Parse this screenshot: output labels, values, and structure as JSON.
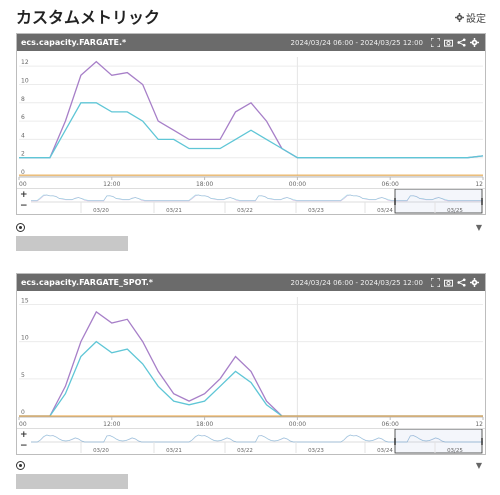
{
  "page": {
    "title": "カスタムメトリック",
    "settings_label": "設定"
  },
  "panels": [
    {
      "title": "ecs.capacity.FARGATE.*",
      "range": "2024/03/24 06:00 - 2024/03/25 12:00",
      "x_ticks": [
        "00",
        "12:00",
        "18:00",
        "00:00",
        "06:00",
        "12"
      ],
      "y_ticks": [
        "0",
        "2",
        "4",
        "6",
        "8",
        "10",
        "12"
      ],
      "nav_ticks": [
        "03/20",
        "03/21",
        "03/22",
        "03/23",
        "03/24",
        "03/25"
      ],
      "zoom_in": "+",
      "zoom_out": "−"
    },
    {
      "title": "ecs.capacity.FARGATE_SPOT.*",
      "range": "2024/03/24 06:00 - 2024/03/25 12:00",
      "x_ticks": [
        "00",
        "12:00",
        "18:00",
        "00:00",
        "06:00",
        "12"
      ],
      "y_ticks": [
        "0",
        "5",
        "10",
        "15"
      ],
      "nav_ticks": [
        "03/20",
        "03/21",
        "03/22",
        "03/23",
        "03/24",
        "03/25"
      ],
      "zoom_in": "+",
      "zoom_out": "−"
    }
  ],
  "icons": [
    "gear-icon",
    "fullscreen-icon",
    "camera-icon",
    "share-icon",
    "settings-gear-icon",
    "radio-icon",
    "caret-down-icon"
  ],
  "colors": {
    "purple": "#a77fc8",
    "cyan": "#5fc6d6",
    "orange": "#e9a23b",
    "header": "#6b6b6b"
  },
  "chart_data": [
    {
      "type": "line",
      "x": [
        "06:00",
        "07:00",
        "08:00",
        "09:00",
        "10:00",
        "11:00",
        "12:00",
        "13:00",
        "14:00",
        "15:00",
        "16:00",
        "17:00",
        "18:00",
        "19:00",
        "20:00",
        "21:00",
        "22:00",
        "23:00",
        "00:00",
        "01:00",
        "02:00",
        "03:00",
        "04:00",
        "05:00",
        "06:00",
        "07:00",
        "08:00",
        "09:00",
        "10:00",
        "11:00",
        "12:00"
      ],
      "ylim": [
        0,
        13
      ],
      "series": [
        {
          "values": [
            2,
            2,
            2,
            6,
            11,
            12.5,
            11,
            11.3,
            10,
            6,
            5,
            4,
            4,
            4,
            7,
            8,
            6,
            3,
            2,
            2,
            2,
            2,
            2,
            2,
            2,
            2,
            2,
            2,
            2,
            2,
            2.2
          ]
        },
        {
          "values": [
            2,
            2,
            2,
            5,
            8,
            8,
            7,
            7,
            6,
            4,
            4,
            3,
            3,
            3,
            4,
            5,
            4,
            3,
            2,
            2,
            2,
            2,
            2,
            2,
            2,
            2,
            2,
            2,
            2,
            2,
            2.2
          ]
        },
        {
          "values": [
            0.1,
            0.1,
            0.1,
            0.1,
            0.1,
            0.1,
            0.1,
            0.1,
            0.1,
            0.1,
            0.1,
            0.1,
            0.1,
            0.1,
            0.1,
            0.1,
            0.1,
            0.1,
            0.1,
            0.1,
            0.1,
            0.1,
            0.1,
            0.1,
            0.1,
            0.1,
            0.1,
            0.1,
            0.1,
            0.1,
            0.1
          ]
        }
      ]
    },
    {
      "type": "line",
      "x": [
        "06:00",
        "07:00",
        "08:00",
        "09:00",
        "10:00",
        "11:00",
        "12:00",
        "13:00",
        "14:00",
        "15:00",
        "16:00",
        "17:00",
        "18:00",
        "19:00",
        "20:00",
        "21:00",
        "22:00",
        "23:00",
        "00:00",
        "01:00",
        "02:00",
        "03:00",
        "04:00",
        "05:00",
        "06:00",
        "07:00",
        "08:00",
        "09:00",
        "10:00",
        "11:00",
        "12:00"
      ],
      "ylim": [
        0,
        16
      ],
      "series": [
        {
          "values": [
            0,
            0,
            0,
            4,
            10,
            14,
            12.5,
            13,
            10,
            6,
            3,
            2,
            3,
            5,
            8,
            6,
            2,
            0,
            0,
            0,
            0,
            0,
            0,
            0,
            0,
            0,
            0,
            0,
            0,
            0,
            0
          ]
        },
        {
          "values": [
            0,
            0,
            0,
            3,
            8,
            10,
            8.5,
            9,
            7,
            4,
            2,
            1.5,
            2,
            4,
            6,
            4.5,
            1.5,
            0,
            0,
            0,
            0,
            0,
            0,
            0,
            0,
            0,
            0,
            0,
            0,
            0,
            0
          ]
        },
        {
          "values": [
            0,
            0,
            0,
            0,
            0,
            0,
            0,
            0,
            0,
            0,
            0,
            0,
            0,
            0,
            0,
            0,
            0,
            0,
            0,
            0,
            0,
            0,
            0,
            0,
            0,
            0,
            0,
            0,
            0,
            0,
            0
          ]
        }
      ]
    }
  ]
}
